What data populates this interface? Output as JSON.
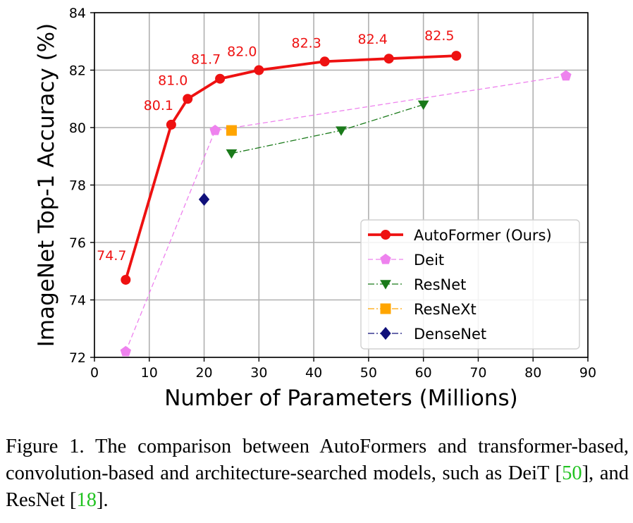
{
  "chart_data": {
    "type": "line",
    "xlabel": "Number of Parameters (Millions)",
    "ylabel": "ImageNet Top-1 Accuracy (%)",
    "xlim": [
      0,
      90
    ],
    "ylim": [
      72,
      84
    ],
    "xticks": [
      0,
      10,
      20,
      30,
      40,
      50,
      60,
      70,
      80,
      90
    ],
    "yticks": [
      72,
      74,
      76,
      78,
      80,
      82,
      84
    ],
    "grid": true,
    "legend_position": "lower-right",
    "series": [
      {
        "name": "AutoFormer (Ours)",
        "color": "#ee1111",
        "marker": "circle",
        "linestyle": "solid",
        "x": [
          5.7,
          14,
          17,
          22.9,
          30,
          42,
          53.7,
          66
        ],
        "y": [
          74.7,
          80.1,
          81.0,
          81.7,
          82.0,
          82.3,
          82.4,
          82.5
        ],
        "labels": [
          "74.7",
          "80.1",
          "81.0",
          "81.7",
          "82.0",
          "82.3",
          "82.4",
          "82.5"
        ]
      },
      {
        "name": "Deit",
        "color": "#ee82ee",
        "marker": "pentagon",
        "linestyle": "dashed",
        "x": [
          5.7,
          22,
          86
        ],
        "y": [
          72.2,
          79.9,
          81.8
        ]
      },
      {
        "name": "ResNet",
        "color": "#1a7a1a",
        "marker": "triangle-down",
        "linestyle": "dashdot",
        "x": [
          25,
          45,
          60
        ],
        "y": [
          79.1,
          79.9,
          80.8
        ]
      },
      {
        "name": "ResNeXt",
        "color": "#ffa500",
        "marker": "square",
        "linestyle": "dashdot",
        "x": [
          25
        ],
        "y": [
          79.9
        ]
      },
      {
        "name": "DenseNet",
        "color": "#10107a",
        "marker": "diamond",
        "linestyle": "dashdot",
        "x": [
          20
        ],
        "y": [
          77.5
        ]
      }
    ]
  },
  "caption": {
    "text_before": "Figure 1. The comparison between AutoFormers and transformer-based, convolution-based and architecture-searched models, such as DeiT [",
    "ref1": "50",
    "text_middle": "], and ResNet [",
    "ref2": "18",
    "text_after": "].",
    "ref_color": "#22c322"
  }
}
